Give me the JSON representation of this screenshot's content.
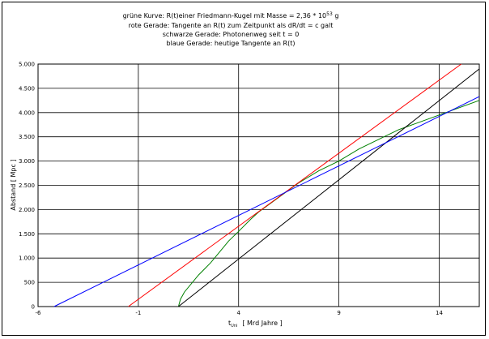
{
  "chart_data": {
    "type": "line",
    "title_lines": [
      "grüne Kurve: R(t)einer Friedmann-Kugel mit Masse = 2,36 * 10",
      "rote Gerade: Tangente an R(t) zum Zeitpunkt als dR/dt = c galt",
      "schwarze Gerade: Photonenweg seit t = 0",
      "blaue Gerade: heutige Tangente an R(t)"
    ],
    "title_exponent": "53",
    "title_unit": " g",
    "xlabel_main": "t",
    "xlabel_sub": "Uni",
    "xlabel_unit": "[ Mrd Jahre ]",
    "ylabel": "Abstand  [ Mpc ]",
    "xlim": [
      -6,
      16
    ],
    "ylim": [
      0,
      5000
    ],
    "x_ticks": [
      -6,
      -1,
      4,
      9,
      14
    ],
    "y_ticks": [
      0,
      500,
      1000,
      1500,
      2000,
      2500,
      3000,
      3500,
      4000,
      4500,
      5000
    ],
    "y_tick_labels": [
      "0",
      "500",
      "1.000",
      "1.500",
      "2.000",
      "2.500",
      "3.000",
      "3.500",
      "4.000",
      "4.500",
      "5.000"
    ],
    "grid": true,
    "series": [
      {
        "color": "#008000",
        "points": [
          [
            1,
            0
          ],
          [
            1.1,
            150
          ],
          [
            1.3,
            300
          ],
          [
            1.7,
            500
          ],
          [
            2,
            650
          ],
          [
            2.6,
            900
          ],
          [
            3,
            1100
          ],
          [
            3.5,
            1350
          ],
          [
            4,
            1550
          ],
          [
            4.6,
            1800
          ],
          [
            5,
            1950
          ],
          [
            6,
            2250
          ],
          [
            7,
            2550
          ],
          [
            8,
            2800
          ],
          [
            9,
            3000
          ],
          [
            10,
            3250
          ],
          [
            11,
            3450
          ],
          [
            12,
            3650
          ],
          [
            13,
            3800
          ],
          [
            14,
            3950
          ],
          [
            15,
            4100
          ],
          [
            16,
            4250
          ]
        ]
      },
      {
        "color": "#ff0000",
        "points": [
          [
            -1.5,
            0
          ],
          [
            15.1,
            5000
          ]
        ]
      },
      {
        "color": "#000000",
        "points": [
          [
            1,
            0
          ],
          [
            16,
            4900
          ]
        ]
      },
      {
        "color": "#0000ff",
        "points": [
          [
            -5.2,
            0
          ],
          [
            16,
            4330
          ]
        ]
      }
    ]
  }
}
